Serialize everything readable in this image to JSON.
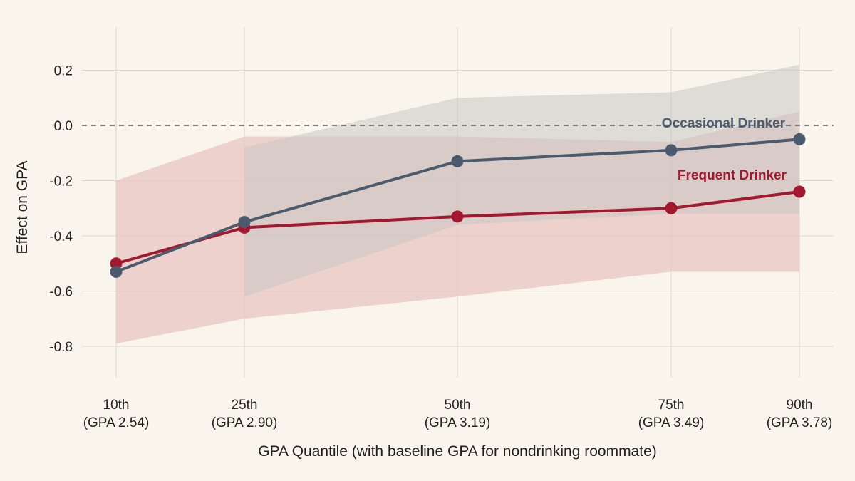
{
  "chart_data": {
    "type": "line",
    "title": "",
    "xlabel": "GPA Quantile (with baseline GPA for nondrinking roommate)",
    "ylabel": "Effect on GPA",
    "categories": [
      {
        "quantile": "10th",
        "gpa": "(GPA 2.54)"
      },
      {
        "quantile": "25th",
        "gpa": "(GPA 2.90)"
      },
      {
        "quantile": "50th",
        "gpa": "(GPA 3.19)"
      },
      {
        "quantile": "75th",
        "gpa": "(GPA 3.49)"
      },
      {
        "quantile": "90th",
        "gpa": "(GPA 3.78)"
      }
    ],
    "x_values": [
      10,
      25,
      50,
      75,
      90
    ],
    "ylim": [
      -0.95,
      0.35
    ],
    "yticks": [
      0.2,
      0.0,
      -0.2,
      -0.4,
      -0.6,
      -0.8
    ],
    "ytick_labels": [
      "0.2",
      "0.0",
      "-0.2",
      "-0.4",
      "-0.6",
      "-0.8"
    ],
    "reference_line": {
      "y": 0.0,
      "style": "dashed"
    },
    "grid": true,
    "series": [
      {
        "name": "Frequent Drinker",
        "color": "#a3182f",
        "band_color": "#e8c4c2",
        "values": [
          -0.5,
          -0.37,
          -0.33,
          -0.3,
          -0.24
        ],
        "ci_lower": [
          -0.79,
          -0.7,
          -0.62,
          -0.53,
          -0.53
        ],
        "ci_upper": [
          -0.2,
          -0.04,
          -0.04,
          -0.06,
          0.05
        ]
      },
      {
        "name": "Occasional Drinker",
        "color": "#4b5b6d",
        "band_color": "#c7c7c4",
        "values": [
          -0.53,
          -0.35,
          -0.13,
          -0.09,
          -0.05
        ],
        "ci_lower": [
          null,
          -0.62,
          -0.36,
          -0.32,
          -0.32
        ],
        "ci_upper": [
          null,
          -0.08,
          0.1,
          0.12,
          0.22
        ]
      }
    ]
  }
}
